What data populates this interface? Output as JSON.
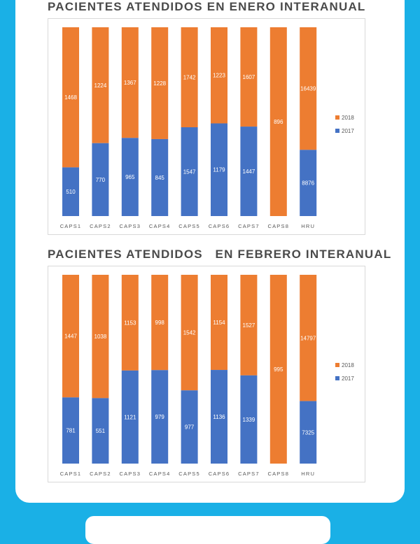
{
  "colors": {
    "background": "#1ab0e6",
    "series_2018": "#ed7d31",
    "series_2017": "#4472c4"
  },
  "chart_data": [
    {
      "type": "bar",
      "stacked": true,
      "normalized": true,
      "title": "PACIENTES ATENDIDOS EN ENERO INTERANUAL",
      "categories": [
        "CAPS1",
        "CAPS2",
        "CAPS3",
        "CAPS4",
        "CAPS5",
        "CAPS6",
        "CAPS7",
        "CAPS8",
        "HRU"
      ],
      "series": [
        {
          "name": "2017",
          "color": "#4472c4",
          "values": [
            510,
            770,
            965,
            845,
            1547,
            1179,
            1447,
            null,
            8876
          ]
        },
        {
          "name": "2018",
          "color": "#ed7d31",
          "values": [
            1468,
            1224,
            1367,
            1228,
            1742,
            1223,
            1607,
            896,
            16439
          ]
        }
      ],
      "legend": [
        "2018",
        "2017"
      ],
      "legend_position": "right",
      "grid": false
    },
    {
      "type": "bar",
      "stacked": true,
      "normalized": true,
      "title": "PACIENTES ATENDIDOS   EN FEBRERO INTERANUAL",
      "categories": [
        "CAPS1",
        "CAPS2",
        "CAPS3",
        "CAPS4",
        "CAPS5",
        "CAPS6",
        "CAPS7",
        "CAPS8",
        "HRU"
      ],
      "series": [
        {
          "name": "2017",
          "color": "#4472c4",
          "values": [
            781,
            551,
            1121,
            979,
            977,
            1136,
            1339,
            null,
            7325
          ]
        },
        {
          "name": "2018",
          "color": "#ed7d31",
          "values": [
            1447,
            1038,
            1153,
            998,
            1542,
            1154,
            1527,
            995,
            14797
          ]
        }
      ],
      "legend": [
        "2018",
        "2017"
      ],
      "legend_position": "right",
      "grid": false
    }
  ]
}
